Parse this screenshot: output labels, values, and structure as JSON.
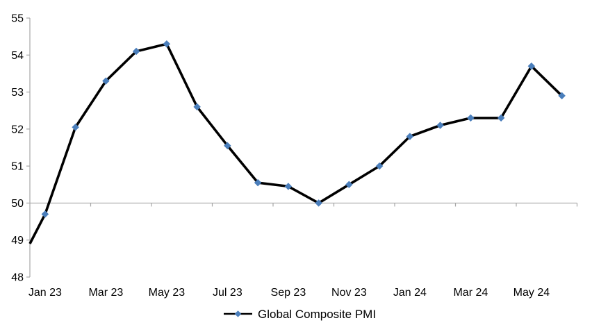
{
  "chart_data": {
    "type": "line",
    "title": "",
    "categories": [
      "Jan 23",
      "Feb 23",
      "Mar 23",
      "Apr 23",
      "May 23",
      "Jun 23",
      "Jul 23",
      "Aug 23",
      "Sep 23",
      "Oct 23",
      "Nov 23",
      "Dec 23",
      "Jan 24",
      "Feb 24",
      "Mar 24",
      "Apr 24",
      "May 24",
      "Jun 24"
    ],
    "series": [
      {
        "name": "Global Composite PMI",
        "values": [
          49.7,
          52.05,
          53.3,
          54.1,
          54.3,
          52.6,
          51.55,
          50.55,
          50.45,
          50.0,
          50.5,
          51.0,
          51.8,
          52.1,
          52.3,
          52.3,
          53.7,
          52.9
        ],
        "leading_edge_value": 48.9,
        "line_color": "#000000",
        "marker": "diamond",
        "marker_color": "#4A7EBB"
      }
    ],
    "x_tick_labels": [
      "Jan 23",
      "Mar 23",
      "May 23",
      "Jul 23",
      "Sep 23",
      "Nov 23",
      "Jan 24",
      "Mar 24",
      "May 24"
    ],
    "x_label_interval": 2,
    "ylim": [
      48,
      55
    ],
    "y_ticks": [
      48,
      49,
      50,
      51,
      52,
      53,
      54,
      55
    ],
    "category_axis_cross_value": 50,
    "grid": "off",
    "legend": {
      "position": "bottom",
      "entries": [
        "Global Composite PMI"
      ]
    },
    "axis_color": "#A6A6A6",
    "text_color": "#000000",
    "background": "#FFFFFF"
  }
}
